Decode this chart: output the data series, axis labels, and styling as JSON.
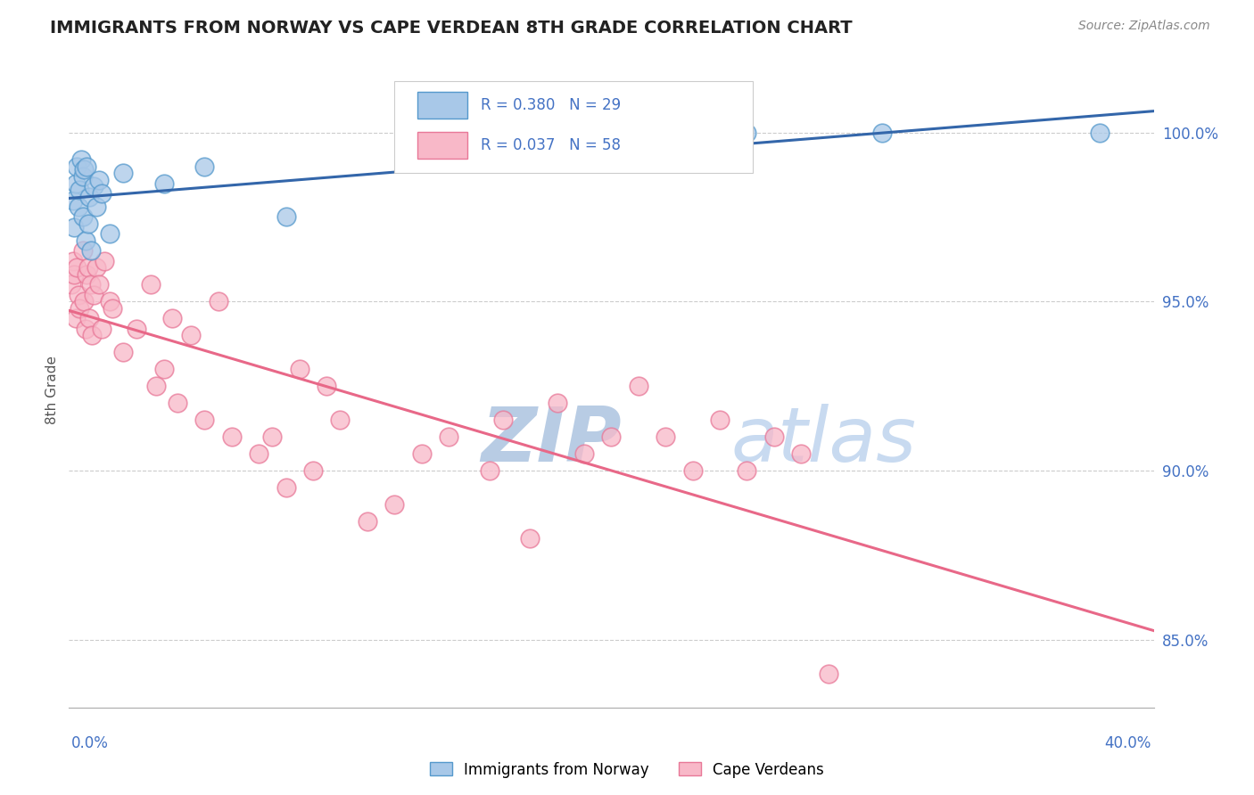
{
  "title": "IMMIGRANTS FROM NORWAY VS CAPE VERDEAN 8TH GRADE CORRELATION CHART",
  "source": "Source: ZipAtlas.com",
  "ylabel": "8th Grade",
  "y_ticks": [
    85.0,
    90.0,
    95.0,
    100.0
  ],
  "x_range": [
    0.0,
    40.0
  ],
  "y_range": [
    83.0,
    101.8
  ],
  "r_norway": 0.38,
  "n_norway": 29,
  "r_cape": 0.037,
  "n_cape": 58,
  "norway_color": "#a8c8e8",
  "norway_edge": "#5599cc",
  "cape_color": "#f8b8c8",
  "cape_edge": "#e87898",
  "norway_line_color": "#3366aa",
  "cape_line_color": "#e86888",
  "background_color": "#ffffff",
  "grid_color": "#cccccc",
  "title_color": "#222222",
  "right_axis_color": "#4472c4",
  "watermark_color": "#d0dff0",
  "figsize": [
    14.06,
    8.92
  ],
  "dpi": 100,
  "norway_x": [
    0.15,
    0.2,
    0.25,
    0.3,
    0.35,
    0.4,
    0.45,
    0.5,
    0.5,
    0.55,
    0.6,
    0.65,
    0.7,
    0.75,
    0.8,
    0.9,
    1.0,
    1.1,
    1.2,
    1.5,
    2.0,
    3.5,
    5.0,
    8.0,
    16.0,
    20.0,
    25.0,
    30.0,
    38.0
  ],
  "norway_y": [
    98.0,
    97.2,
    98.5,
    99.0,
    97.8,
    98.3,
    99.2,
    98.7,
    97.5,
    98.9,
    96.8,
    99.0,
    97.3,
    98.1,
    96.5,
    98.4,
    97.8,
    98.6,
    98.2,
    97.0,
    98.8,
    98.5,
    99.0,
    97.5,
    99.5,
    99.8,
    100.0,
    100.0,
    100.0
  ],
  "cape_x": [
    0.1,
    0.15,
    0.2,
    0.25,
    0.3,
    0.35,
    0.4,
    0.5,
    0.55,
    0.6,
    0.65,
    0.7,
    0.75,
    0.8,
    0.85,
    0.9,
    1.0,
    1.1,
    1.2,
    1.3,
    1.5,
    1.6,
    2.0,
    2.5,
    3.0,
    3.2,
    3.5,
    3.8,
    4.0,
    5.0,
    5.5,
    6.0,
    7.0,
    7.5,
    8.0,
    9.0,
    10.0,
    11.0,
    12.0,
    13.0,
    14.0,
    15.5,
    16.0,
    17.0,
    18.0,
    19.0,
    20.0,
    21.0,
    22.0,
    23.0,
    24.0,
    25.0,
    26.0,
    27.0,
    8.5,
    9.5,
    4.5,
    28.0
  ],
  "cape_y": [
    95.5,
    96.2,
    95.8,
    94.5,
    96.0,
    95.2,
    94.8,
    96.5,
    95.0,
    94.2,
    95.8,
    96.0,
    94.5,
    95.5,
    94.0,
    95.2,
    96.0,
    95.5,
    94.2,
    96.2,
    95.0,
    94.8,
    93.5,
    94.2,
    95.5,
    92.5,
    93.0,
    94.5,
    92.0,
    91.5,
    95.0,
    91.0,
    90.5,
    91.0,
    89.5,
    90.0,
    91.5,
    88.5,
    89.0,
    90.5,
    91.0,
    90.0,
    91.5,
    88.0,
    92.0,
    90.5,
    91.0,
    92.5,
    91.0,
    90.0,
    91.5,
    90.0,
    91.0,
    90.5,
    93.0,
    92.5,
    94.0,
    84.0
  ]
}
